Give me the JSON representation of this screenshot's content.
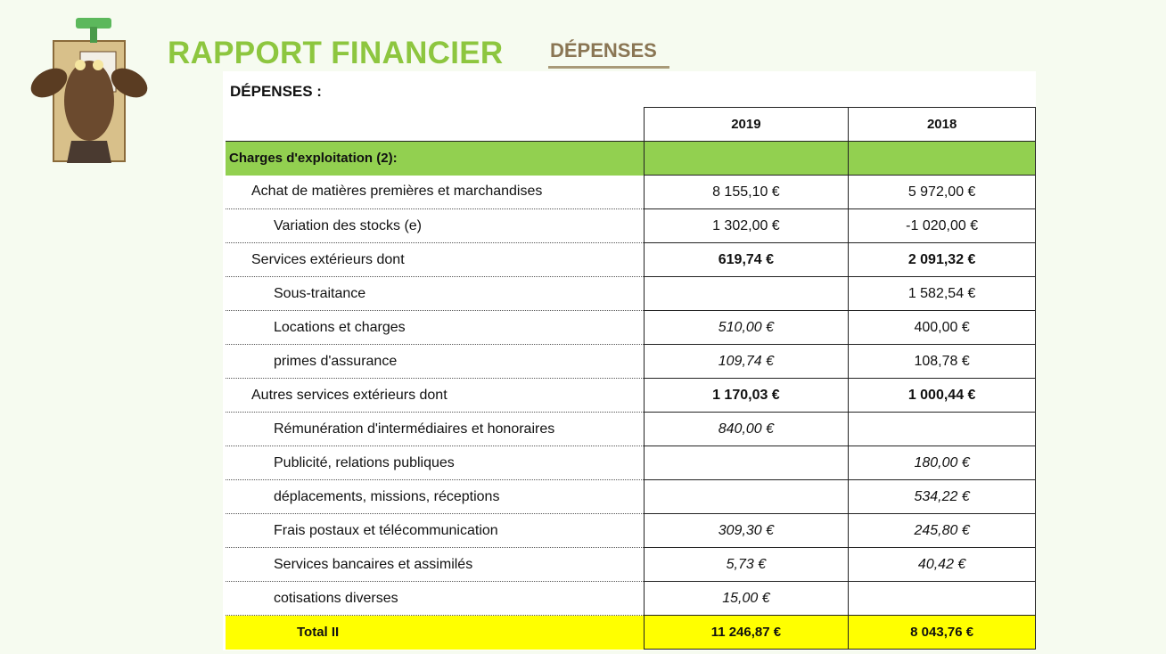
{
  "header": {
    "title": "RAPPORT FINANCIER",
    "subtitle": "DÉPENSES"
  },
  "table": {
    "heading": "DÉPENSES :",
    "columns": [
      "2019",
      "2018"
    ],
    "section": "Charges d'exploitation (2):",
    "rows": [
      [
        "Achat de matières premières et marchandises",
        "8 155,10 €",
        "5 972,00 €"
      ],
      [
        "Variation des stocks (e)",
        "1 302,00 €",
        "-1 020,00 €"
      ],
      [
        "Services extérieurs dont",
        "619,74 €",
        "2 091,32 €"
      ],
      [
        "Sous-traitance",
        null,
        "1 582,54 €"
      ],
      [
        "Locations et charges",
        "510,00 €",
        "400,00 €"
      ],
      [
        "primes d'assurance",
        "109,74 €",
        "108,78 €"
      ],
      [
        "Autres services extérieurs dont",
        "1 170,03 €",
        "1 000,44 €"
      ],
      [
        "Rémunération d'intermédiaires et honoraires",
        "840,00 €",
        null
      ],
      [
        "Publicité, relations publiques",
        null,
        "180,00 €"
      ],
      [
        "déplacements, missions, réceptions",
        null,
        "534,22 €"
      ],
      [
        "Frais postaux et télécommunication",
        "309,30 €",
        "245,80 €"
      ],
      [
        "Services bancaires et assimilés",
        "5,73 €",
        "40,42 €"
      ],
      [
        "cotisations diverses",
        "15,00 €",
        null
      ]
    ],
    "total": [
      "Total II",
      "11 246,87 €",
      "8 043,76 €"
    ]
  }
}
